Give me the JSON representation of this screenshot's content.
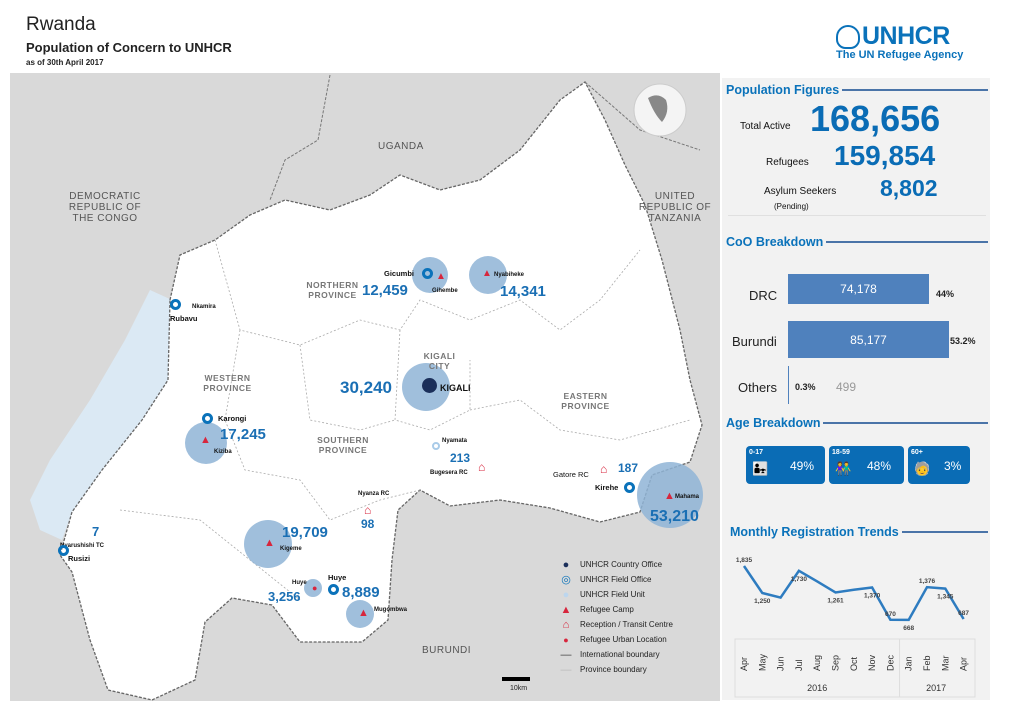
{
  "header": {
    "title": "Rwanda",
    "subtitle": "Population of Concern to UNHCR",
    "as_of": "as of 30th April 2017"
  },
  "logo": {
    "name": "UNHCR",
    "tagline": "The UN Refugee Agency"
  },
  "population": {
    "heading": "Population Figures",
    "total_label": "Total Active",
    "total": "168,656",
    "refugees_label": "Refugees",
    "refugees": "159,854",
    "asylum_label": "Asylum Seekers",
    "asylum_sub": "(Pending)",
    "asylum": "8,802"
  },
  "coo": {
    "heading": "CoO Breakdown",
    "rows": [
      {
        "label": "DRC",
        "value": "74,178",
        "pct": "44%",
        "share": 44
      },
      {
        "label": "Burundi",
        "value": "85,177",
        "pct": "53.2%",
        "share": 53.2
      },
      {
        "label": "Others",
        "value": "499",
        "pct": "0.3%",
        "share": 0.3
      }
    ]
  },
  "age": {
    "heading": "Age Breakdown",
    "groups": [
      {
        "range": "0-17",
        "pct": "49%",
        "icon": "child-adult-icon"
      },
      {
        "range": "18-59",
        "pct": "48%",
        "icon": "adults-icon"
      },
      {
        "range": "60+",
        "pct": "3%",
        "icon": "elderly-icon"
      }
    ]
  },
  "chart_data": {
    "type": "line",
    "title": "Monthly Registration Trends",
    "categories": [
      "Apr",
      "May",
      "Jun",
      "Jul",
      "Aug",
      "Sep",
      "Oct",
      "Nov",
      "Dec",
      "Jan",
      "Feb",
      "Mar",
      "Apr"
    ],
    "years": [
      {
        "label": "2016",
        "span": 9
      },
      {
        "label": "2017",
        "span": 4
      }
    ],
    "values": [
      1835,
      1250,
      1150,
      1730,
      1500,
      1261,
      1320,
      1370,
      670,
      668,
      1376,
      1345,
      687
    ],
    "labels": [
      "1,835",
      "1,250",
      "",
      "1,730",
      "",
      "1,261",
      "",
      "1,370",
      "670",
      "668",
      "1,376",
      "1,345",
      "687"
    ],
    "color": "#2e7cc0"
  },
  "map": {
    "countries": [
      "UGANDA",
      "DEMOCRATIC REPUBLIC OF THE CONGO",
      "UNITED REPUBLIC OF TANZANIA",
      "BURUNDI"
    ],
    "provinces": [
      "NORTHERN PROVINCE",
      "WESTERN PROVINCE",
      "SOUTHERN PROVINCE",
      "KIGALI CITY",
      "EASTERN PROVINCE"
    ],
    "figures": [
      "12,459",
      "14,341",
      "30,240",
      "17,245",
      "19,709",
      "3,256",
      "8,889",
      "98",
      "213",
      "187",
      "53,210",
      "7"
    ],
    "sites": [
      "Gicumbi",
      "Gihembe",
      "Nyabiheke",
      "KIGALI",
      "Nkamira",
      "Rubavu",
      "Karongi",
      "Kiziba",
      "Kigeme",
      "Huye",
      "Huye",
      "Mugombwa",
      "Nyanza RC",
      "Nyamata",
      "Bugesera RC",
      "Gatore RC",
      "Kirehe",
      "Mahama",
      "Nyarushishi TC",
      "Rusizi"
    ],
    "scale": "10km",
    "legend": [
      {
        "label": "UNHCR Country Office",
        "icon": "country-office-icon"
      },
      {
        "label": "UNHCR Field Office",
        "icon": "field-office-icon"
      },
      {
        "label": "UNHCR Field Unit",
        "icon": "field-unit-icon"
      },
      {
        "label": "Refugee Camp",
        "icon": "refugee-camp-icon"
      },
      {
        "label": "Reception / Transit Centre",
        "icon": "transit-centre-icon"
      },
      {
        "label": "Refugee Urban Location",
        "icon": "urban-location-icon"
      },
      {
        "label": "International boundary",
        "icon": "international-boundary-icon"
      },
      {
        "label": "Province boundary",
        "icon": "province-boundary-icon"
      }
    ]
  }
}
